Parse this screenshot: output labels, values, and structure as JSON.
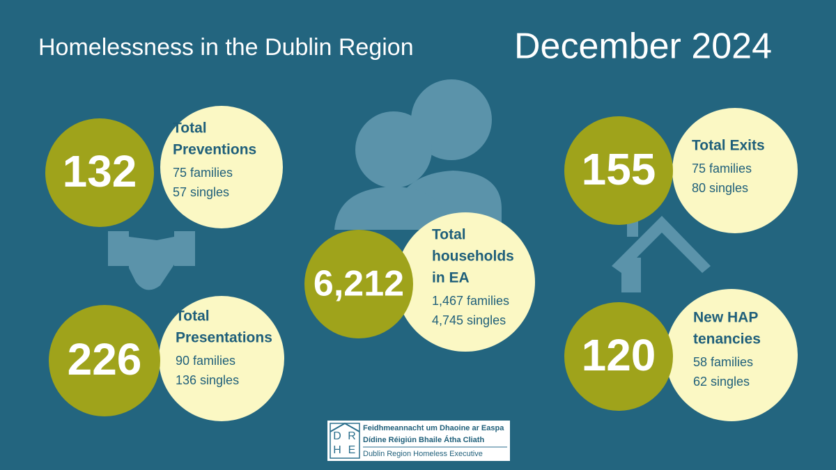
{
  "header": {
    "title": "Homelessness in the Dublin Region",
    "date": "December 2024"
  },
  "stats": [
    {
      "value": "132",
      "title": [
        "Total",
        "Preventions"
      ],
      "lines": [
        "75 families",
        "57 singles"
      ]
    },
    {
      "value": "226",
      "title": [
        "Total",
        "Presentations"
      ],
      "lines": [
        "90 families",
        "136 singles"
      ]
    },
    {
      "value": "6,212",
      "title": [
        "Total",
        "households",
        "in EA"
      ],
      "lines": [
        "1,467 families",
        "4,745 singles"
      ]
    },
    {
      "value": "155",
      "title": [
        "Total Exits"
      ],
      "lines": [
        "75 families",
        "80 singles"
      ]
    },
    {
      "value": "120",
      "title": [
        "New HAP",
        "tenancies"
      ],
      "lines": [
        "58 families",
        "62 singles"
      ]
    }
  ],
  "logo": {
    "initials": [
      "D",
      "R",
      "H",
      "E"
    ],
    "lines": [
      "Feidhmeannacht um Dhaoine ar Easpa",
      "Dídine Réigiún Bhaile Átha Cliath",
      "Dublin Region Homeless Executive"
    ]
  }
}
